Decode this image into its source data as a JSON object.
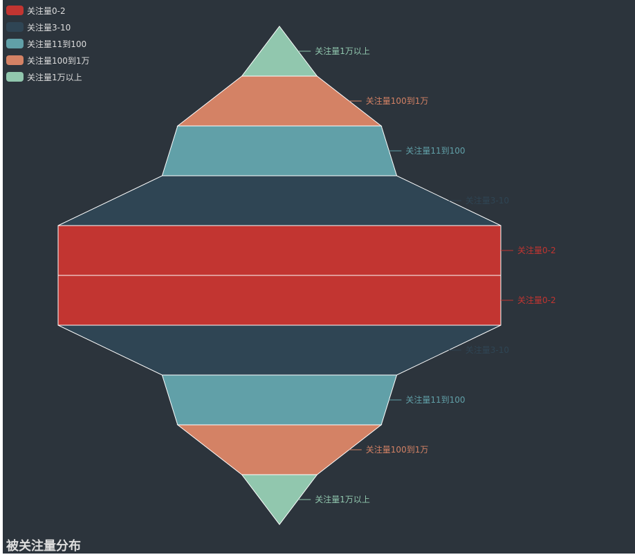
{
  "chart_data": {
    "type": "funnel",
    "title": "被关注量分布",
    "categories": [
      "关注量0-2",
      "关注量3-10",
      "关注量11到100",
      "关注量100到1万",
      "关注量1万以上"
    ],
    "colors": [
      "#c23531",
      "#2f4554",
      "#61a0a8",
      "#d48265",
      "#91c7ae"
    ],
    "label_colors": [
      "#c23531",
      "#2f4554",
      "#61a0a8",
      "#d48265",
      "#91c7ae"
    ],
    "funnels": [
      {
        "direction": "ascending",
        "values": [
          100,
          53,
          46,
          17,
          0
        ]
      },
      {
        "direction": "descending",
        "values": [
          100,
          53,
          46,
          17,
          0
        ]
      }
    ],
    "legend_position": "top-left"
  }
}
